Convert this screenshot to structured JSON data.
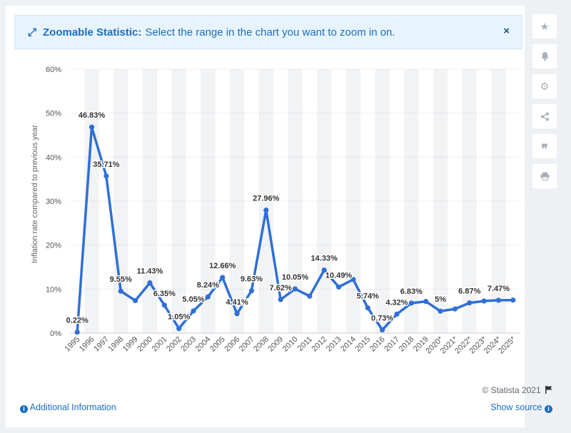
{
  "banner": {
    "title": "Zoomable Statistic:",
    "text": "Select the range in the chart you want to zoom in on.",
    "close_label": "×"
  },
  "sidebar": {
    "icons": [
      "star-icon",
      "bell-icon",
      "gear-icon",
      "share-icon",
      "quote-icon",
      "print-icon"
    ]
  },
  "footer": {
    "credit": "© Statista 2021",
    "additional_info": "Additional Information",
    "show_source": "Show source"
  },
  "colors": {
    "line": "#2f6fd6",
    "banner_text": "#1b6ec2",
    "grid": "#c9ced4",
    "band": "#f2f3f5"
  },
  "chart_data": {
    "type": "line",
    "title": "",
    "xlabel": "",
    "ylabel": "Inflation rate compared to previous year",
    "ylim": [
      0,
      60
    ],
    "yticks": [
      "0%",
      "10%",
      "20%",
      "30%",
      "40%",
      "50%",
      "60%"
    ],
    "categories": [
      "1995",
      "1996",
      "1997",
      "1998",
      "1999",
      "2000",
      "2001",
      "2002",
      "2003",
      "2004",
      "2005",
      "2006",
      "2007",
      "2008",
      "2009",
      "2010",
      "2011",
      "2012",
      "2013",
      "2014",
      "2015",
      "2016",
      "2017",
      "2018",
      "2019",
      "2020*",
      "2021*",
      "2022*",
      "2023*",
      "2024*",
      "2025*"
    ],
    "series": [
      {
        "values": [
          0.22,
          46.83,
          35.71,
          9.55,
          7.4,
          11.43,
          6.35,
          1.05,
          5.05,
          8.24,
          12.66,
          4.41,
          9.63,
          27.96,
          7.62,
          10.05,
          8.4,
          14.33,
          10.49,
          12.2,
          5.74,
          0.73,
          4.32,
          6.83,
          7.2,
          5,
          5.5,
          6.87,
          7.3,
          7.47,
          7.5
        ]
      }
    ],
    "data_labels": [
      "0.22%",
      "46.83%",
      "35.71%",
      "9.55%",
      "",
      "11.43%",
      "6.35%",
      "1.05%",
      "5.05%",
      "8.24%",
      "12.66%",
      "4.41%",
      "9.63%",
      "27.96%",
      "7.62%",
      "10.05%",
      "",
      "14.33%",
      "10.49%",
      "",
      "5.74%",
      "0.73%",
      "4.32%",
      "6.83%",
      "",
      "5%",
      "",
      "6.87%",
      "",
      "7.47%",
      ""
    ],
    "grid": true,
    "legend": "none"
  }
}
